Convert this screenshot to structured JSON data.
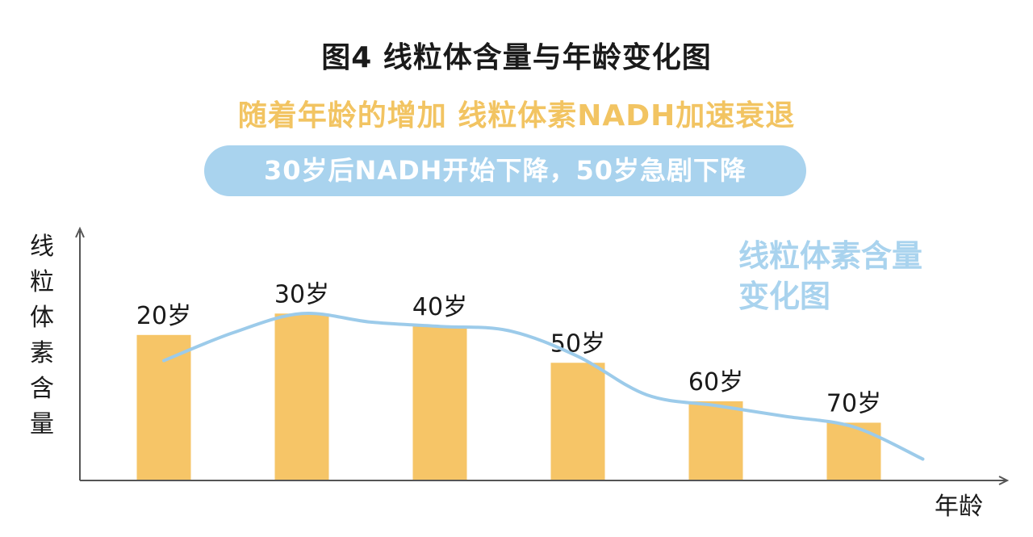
{
  "chart_data": {
    "type": "bar",
    "title": "图4  线粒体含量与年龄变化图",
    "subtitle": "随着年龄的增加 线粒体素NADH加速衰退",
    "banner": "30岁后NADH开始下降，50岁急剧下降",
    "ylabel": "线粒体素含量",
    "xlabel": "年龄",
    "legend": "线粒体素含量变化图",
    "categories": [
      "20岁",
      "30岁",
      "40岁",
      "50岁",
      "60岁",
      "70岁"
    ],
    "values": [
      68,
      78,
      72,
      55,
      37,
      27
    ],
    "ylim": [
      0,
      100
    ],
    "grid": false,
    "trend": {
      "x": [
        0.0,
        0.5,
        1.0,
        1.5,
        2.0,
        2.5,
        3.0,
        3.5,
        4.0,
        4.5,
        5.0,
        5.5
      ],
      "y": [
        56,
        69,
        78,
        74,
        72,
        70,
        58,
        40,
        35,
        30,
        25,
        10
      ]
    }
  },
  "colors": {
    "bar": "#f6c567",
    "trend": "#9ccbea",
    "axis": "#555555"
  }
}
